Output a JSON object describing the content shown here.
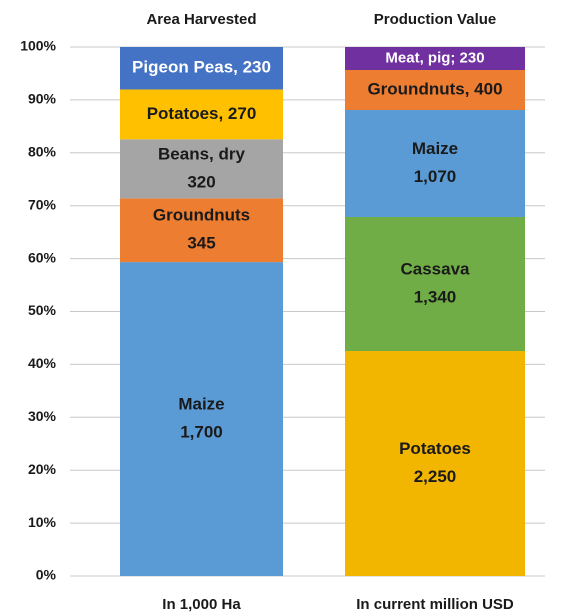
{
  "chart_data": {
    "type": "stacked_percent_bar",
    "ylim": [
      0,
      100
    ],
    "yticks": [
      {
        "value": 0,
        "label": "0%"
      },
      {
        "value": 10,
        "label": "10%"
      },
      {
        "value": 20,
        "label": "20%"
      },
      {
        "value": 30,
        "label": "30%"
      },
      {
        "value": 40,
        "label": "40%"
      },
      {
        "value": 50,
        "label": "50%"
      },
      {
        "value": 60,
        "label": "60%"
      },
      {
        "value": 70,
        "label": "70%"
      },
      {
        "value": 80,
        "label": "80%"
      },
      {
        "value": 90,
        "label": "90%"
      },
      {
        "value": 100,
        "label": "100%"
      }
    ],
    "grid": true,
    "bars": [
      {
        "title": "Area Harvested",
        "footer": "In 1,000 Ha",
        "segments": [
          {
            "label": [
              "Maize",
              "1,700"
            ],
            "value": 1700,
            "color": "#5b9bd5",
            "label_color": "#1a1a1a"
          },
          {
            "label": [
              "Groundnuts",
              "345"
            ],
            "value": 345,
            "color": "#ed7d31",
            "label_color": "#1a1a1a"
          },
          {
            "label": [
              "Beans, dry",
              "320"
            ],
            "value": 320,
            "color": "#a5a5a5",
            "label_color": "#1a1a1a"
          },
          {
            "label": [
              "Potatoes, 270"
            ],
            "value": 270,
            "color": "#ffc000",
            "label_color": "#1a1a1a"
          },
          {
            "label": [
              "Pigeon Peas, 230"
            ],
            "value": 230,
            "color": "#4472c4",
            "label_color": "#ffffff"
          }
        ]
      },
      {
        "title": "Production Value",
        "footer": "In current million USD",
        "segments": [
          {
            "label": [
              "Potatoes",
              "2,250"
            ],
            "value": 2250,
            "color": "#f2b600",
            "label_color": "#1a1a1a"
          },
          {
            "label": [
              "Cassava",
              "1,340"
            ],
            "value": 1340,
            "color": "#70ad47",
            "label_color": "#1a1a1a"
          },
          {
            "label": [
              "Maize",
              "1,070"
            ],
            "value": 1070,
            "color": "#5b9bd5",
            "label_color": "#1a1a1a"
          },
          {
            "label": [
              "Groundnuts, 400"
            ],
            "value": 400,
            "color": "#ed7d31",
            "label_color": "#1a1a1a"
          },
          {
            "label": [
              "Meat, pig; 230"
            ],
            "value": 230,
            "color": "#7030a0",
            "label_color": "#ffffff"
          }
        ]
      }
    ]
  }
}
